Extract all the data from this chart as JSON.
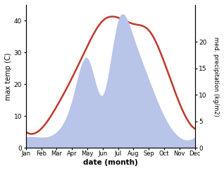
{
  "months": [
    "Jan",
    "Feb",
    "Mar",
    "Apr",
    "May",
    "Jun",
    "Jul",
    "Aug",
    "Sep",
    "Oct",
    "Nov",
    "Dec"
  ],
  "temperature": [
    5,
    6,
    13,
    22,
    32,
    40,
    41,
    39,
    37,
    27,
    14,
    6
  ],
  "precipitation": [
    2,
    2,
    3,
    9,
    17,
    10,
    24,
    21,
    13,
    6,
    2,
    2
  ],
  "temp_color": "#c0392b",
  "precip_fill_color": "#b8c4e8",
  "temp_ylim": [
    0,
    45
  ],
  "precip_ylim": [
    0,
    27
  ],
  "temp_yticks": [
    0,
    10,
    20,
    30,
    40
  ],
  "precip_yticks": [
    0,
    5,
    10,
    15,
    20
  ],
  "ylabel_left": "max temp (C)",
  "ylabel_right": "med. precipitation (kg/m2)",
  "xlabel": "date (month)",
  "bg_color": "#ffffff"
}
